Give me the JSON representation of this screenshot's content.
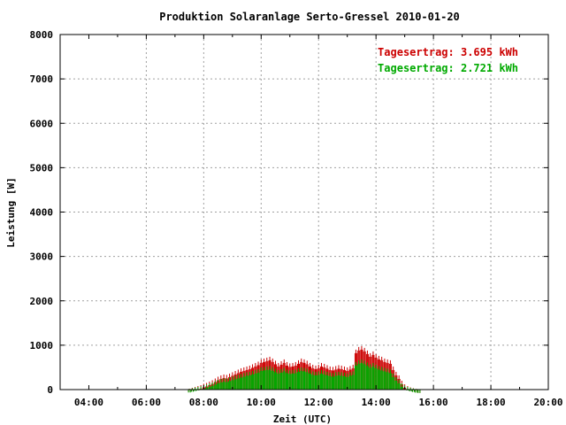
{
  "chart_data": {
    "type": "bar",
    "title": "Produktion Solaranlage Serto-Gressel 2010-01-20",
    "xlabel": "Zeit (UTC)",
    "ylabel": "Leistung [W]",
    "xlim": [
      3,
      20
    ],
    "ylim": [
      0,
      8000
    ],
    "x_ticks": [
      4,
      6,
      8,
      10,
      12,
      14,
      16,
      18,
      20
    ],
    "x_tick_labels": [
      "04:00",
      "06:00",
      "08:00",
      "10:00",
      "12:00",
      "14:00",
      "16:00",
      "18:00",
      "20:00"
    ],
    "y_ticks": [
      0,
      1000,
      2000,
      3000,
      4000,
      5000,
      6000,
      7000,
      8000
    ],
    "y_tick_labels": [
      "0",
      "1000",
      "2000",
      "3000",
      "4000",
      "5000",
      "6000",
      "7000",
      "8000"
    ],
    "grid": true,
    "legend_position": "top-right",
    "x": [
      7.5,
      7.6,
      7.7,
      7.8,
      7.9,
      8.0,
      8.1,
      8.2,
      8.3,
      8.4,
      8.5,
      8.6,
      8.7,
      8.8,
      8.9,
      9.0,
      9.1,
      9.2,
      9.3,
      9.4,
      9.5,
      9.6,
      9.7,
      9.8,
      9.9,
      10.0,
      10.1,
      10.2,
      10.3,
      10.4,
      10.5,
      10.6,
      10.7,
      10.8,
      10.9,
      11.0,
      11.1,
      11.2,
      11.3,
      11.4,
      11.5,
      11.6,
      11.7,
      11.8,
      11.9,
      12.0,
      12.1,
      12.2,
      12.3,
      12.4,
      12.5,
      12.6,
      12.7,
      12.8,
      12.9,
      13.0,
      13.1,
      13.2,
      13.3,
      13.4,
      13.5,
      13.6,
      13.7,
      13.8,
      13.9,
      14.0,
      14.1,
      14.2,
      14.3,
      14.4,
      14.5,
      14.6,
      14.7,
      14.8,
      14.9,
      15.0,
      15.1,
      15.2,
      15.3,
      15.4,
      15.5
    ],
    "series": [
      {
        "name": "Tagesertrag: 3.695 kWh",
        "color": "#cc0000",
        "values": [
          20,
          40,
          60,
          80,
          100,
          130,
          150,
          180,
          210,
          250,
          290,
          320,
          340,
          330,
          360,
          390,
          420,
          450,
          480,
          500,
          520,
          540,
          570,
          600,
          630,
          680,
          700,
          720,
          740,
          700,
          650,
          600,
          640,
          680,
          620,
          590,
          600,
          620,
          660,
          700,
          680,
          650,
          600,
          560,
          540,
          560,
          600,
          580,
          550,
          520,
          510,
          530,
          550,
          540,
          520,
          500,
          530,
          560,
          900,
          960,
          980,
          940,
          880,
          820,
          860,
          800,
          760,
          740,
          700,
          680,
          660,
          520,
          400,
          320,
          200,
          120,
          80,
          50,
          30,
          15,
          5
        ]
      },
      {
        "name": "Tagesertrag: 2.721 kWh",
        "color": "#00aa00",
        "values": [
          15,
          30,
          45,
          60,
          75,
          100,
          115,
          140,
          160,
          190,
          220,
          240,
          255,
          250,
          270,
          290,
          310,
          330,
          350,
          370,
          390,
          400,
          420,
          440,
          460,
          500,
          510,
          520,
          530,
          500,
          470,
          440,
          460,
          490,
          450,
          430,
          440,
          450,
          480,
          500,
          490,
          470,
          440,
          410,
          400,
          410,
          440,
          420,
          400,
          380,
          370,
          390,
          400,
          390,
          380,
          360,
          390,
          410,
          620,
          660,
          680,
          650,
          610,
          570,
          600,
          560,
          530,
          510,
          490,
          470,
          450,
          360,
          280,
          220,
          140,
          90,
          60,
          40,
          25,
          12,
          4
        ]
      }
    ]
  }
}
